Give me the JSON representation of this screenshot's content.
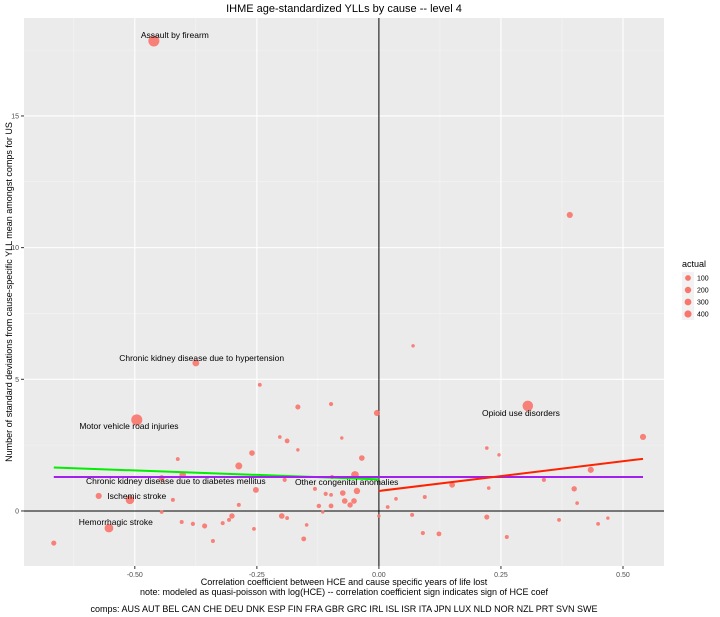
{
  "chart_data": {
    "type": "scatter",
    "title": "IHME age-standardized YLLs by cause -- level 4",
    "xlabel": "Correlation coefficient between HCE and cause specific years of life lost",
    "xlabel_note": "note: modeled as quasi-poisson with log(HCE) -- correlation coefficient sign indicates sign of HCE coef",
    "caption": "comps: AUS AUT BEL CAN CHE DEU DNK ESP FIN FRA GBR GRC IRL ISL ISR ITA JPN LUX NLD NOR NZL PRT SVN SWE",
    "ylabel": "Number of standard deviations from cause-specific YLL mean amongst comps for US",
    "xlim": [
      -0.727,
      0.584
    ],
    "ylim": [
      -2.09,
      18.72
    ],
    "xticks": [
      -0.5,
      -0.25,
      0,
      0.25,
      0.5
    ],
    "xtick_labels": [
      "-0.50",
      "-0.25",
      "0.00",
      "0.25",
      "0.50"
    ],
    "yticks": [
      0,
      5,
      10,
      15
    ],
    "ytick_labels": [
      "0",
      "5",
      "10",
      "15"
    ],
    "grid": true,
    "point_color": "#F8766D",
    "legend": {
      "title": "actual",
      "placement": "right",
      "values": [
        100,
        200,
        300,
        400
      ],
      "labels": [
        "100",
        "200",
        "300",
        "400"
      ]
    },
    "points": [
      [
        -0.461,
        17.85,
        420
      ],
      [
        0.391,
        11.24,
        130
      ],
      [
        0.07,
        6.27,
        40
      ],
      [
        -0.375,
        5.62,
        160
      ],
      [
        -0.244,
        4.79,
        50
      ],
      [
        -0.496,
        3.46,
        420
      ],
      [
        0.305,
        3.99,
        380
      ],
      [
        0.541,
        2.81,
        130
      ],
      [
        -0.004,
        3.72,
        130
      ],
      [
        -0.166,
        3.95,
        90
      ],
      [
        -0.098,
        4.06,
        60
      ],
      [
        -0.203,
        2.81,
        45
      ],
      [
        -0.188,
        2.66,
        80
      ],
      [
        -0.166,
        2.32,
        40
      ],
      [
        -0.076,
        2.77,
        40
      ],
      [
        -0.26,
        2.2,
        110
      ],
      [
        -0.412,
        1.97,
        50
      ],
      [
        -0.035,
        2.01,
        110
      ],
      [
        -0.287,
        1.71,
        170
      ],
      [
        -0.049,
        1.37,
        200
      ],
      [
        -0.402,
        1.37,
        150
      ],
      [
        -0.445,
        1.25,
        120
      ],
      [
        -0.193,
        1.18,
        60
      ],
      [
        -0.096,
        1.29,
        60
      ],
      [
        -0.574,
        0.57,
        130
      ],
      [
        -0.51,
        0.42,
        250
      ],
      [
        -0.422,
        0.42,
        55
      ],
      [
        -0.252,
        0.8,
        120
      ],
      [
        -0.131,
        0.84,
        55
      ],
      [
        -0.109,
        0.65,
        60
      ],
      [
        -0.098,
        0.61,
        50
      ],
      [
        -0.074,
        0.68,
        110
      ],
      [
        -0.045,
        0.76,
        140
      ],
      [
        -0.07,
        0.38,
        110
      ],
      [
        -0.051,
        0.38,
        110
      ],
      [
        -0.059,
        0.23,
        100
      ],
      [
        -0.123,
        0.19,
        70
      ],
      [
        -0.098,
        0.19,
        80
      ],
      [
        -0.287,
        0.23,
        55
      ],
      [
        -0.115,
        -0.04,
        40
      ],
      [
        -0.445,
        -0.04,
        50
      ],
      [
        0.0,
        -0.19,
        40
      ],
      [
        -0.199,
        -0.19,
        110
      ],
      [
        -0.188,
        -0.27,
        50
      ],
      [
        -0.301,
        -0.19,
        100
      ],
      [
        -0.307,
        -0.34,
        55
      ],
      [
        -0.32,
        -0.46,
        55
      ],
      [
        -0.404,
        -0.42,
        55
      ],
      [
        -0.381,
        -0.49,
        60
      ],
      [
        -0.357,
        -0.57,
        90
      ],
      [
        -0.148,
        -0.53,
        45
      ],
      [
        -0.256,
        -0.68,
        50
      ],
      [
        -0.553,
        -0.65,
        260
      ],
      [
        -0.154,
        -1.06,
        80
      ],
      [
        -0.34,
        -1.14,
        55
      ],
      [
        -0.666,
        -1.22,
        90
      ],
      [
        0.035,
        0.46,
        45
      ],
      [
        0.018,
        0.15,
        50
      ],
      [
        0.221,
        2.39,
        45
      ],
      [
        0.246,
        2.13,
        40
      ],
      [
        0.434,
        1.56,
        130
      ],
      [
        0.15,
        0.99,
        110
      ],
      [
        0.225,
        0.87,
        45
      ],
      [
        0.338,
        1.18,
        60
      ],
      [
        0.4,
        0.84,
        100
      ],
      [
        0.406,
        0.3,
        45
      ],
      [
        0.094,
        0.53,
        55
      ],
      [
        0.068,
        -0.15,
        55
      ],
      [
        0.221,
        -0.23,
        90
      ],
      [
        0.369,
        -0.34,
        50
      ],
      [
        0.469,
        -0.27,
        40
      ],
      [
        0.449,
        -0.49,
        50
      ],
      [
        0.09,
        -0.84,
        60
      ],
      [
        0.123,
        -0.87,
        80
      ],
      [
        0.262,
        -0.99,
        55
      ]
    ],
    "annotations": [
      {
        "text": "Assault by firearm",
        "x": -0.418,
        "y": 18.08
      },
      {
        "text": "Chronic kidney disease due to hypertension",
        "x": -0.363,
        "y": 5.81
      },
      {
        "text": "Motor vehicle road injuries",
        "x": -0.512,
        "y": 3.23
      },
      {
        "text": "Opioid use disorders",
        "x": 0.291,
        "y": 3.72
      },
      {
        "text": "Chronic kidney disease due to diabetes mellitus",
        "x": -0.416,
        "y": 1.14
      },
      {
        "text": "Other congenital anomalies",
        "x": -0.066,
        "y": 1.1
      },
      {
        "text": "Ischemic stroke",
        "x": -0.496,
        "y": 0.57
      },
      {
        "text": "Hemorrhagic stroke",
        "x": -0.539,
        "y": -0.42
      }
    ],
    "fit_lines": [
      {
        "name": "negative fit",
        "color": "#00EE00",
        "x": [
          -0.666,
          0.0
        ],
        "y": [
          1.65,
          1.2
        ]
      },
      {
        "name": "overall fit",
        "color": "#A020F0",
        "x": [
          -0.666,
          0.541
        ],
        "y": [
          1.29,
          1.29
        ]
      },
      {
        "name": "positive fit",
        "color": "#FF2200",
        "x": [
          0.0,
          0.541
        ],
        "y": [
          0.76,
          1.98
        ]
      }
    ]
  }
}
